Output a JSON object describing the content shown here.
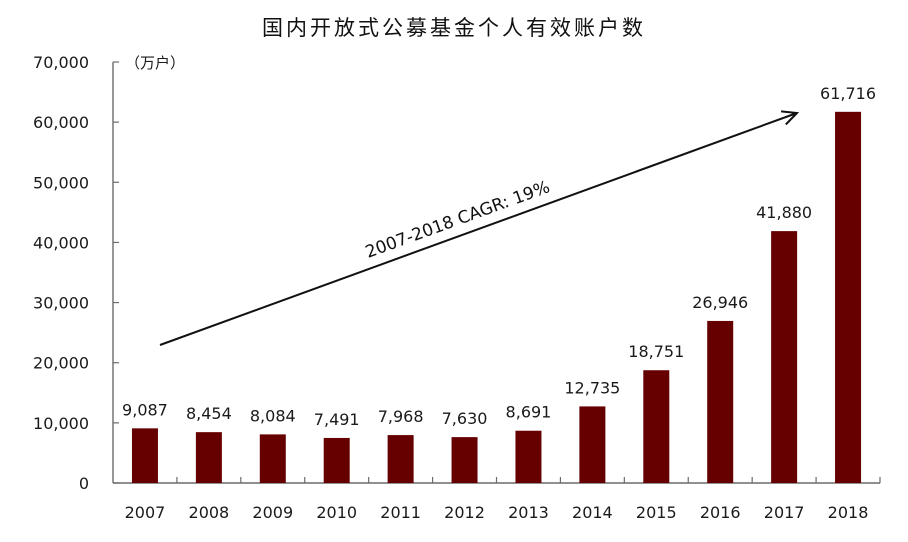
{
  "chart_data": {
    "type": "bar",
    "title": "国内开放式公募基金个人有效账户数",
    "unit_label": "（万户）",
    "xlabel": "",
    "ylabel": "万户",
    "ylim": [
      0,
      70000
    ],
    "yticks": [
      0,
      10000,
      20000,
      30000,
      40000,
      50000,
      60000,
      70000
    ],
    "ytick_labels": [
      "0",
      "10,000",
      "20,000",
      "30,000",
      "40,000",
      "50,000",
      "60,000",
      "70,000"
    ],
    "categories": [
      "2007",
      "2008",
      "2009",
      "2010",
      "2011",
      "2012",
      "2013",
      "2014",
      "2015",
      "2016",
      "2017",
      "2018"
    ],
    "values": [
      9087,
      8454,
      8084,
      7491,
      7968,
      7630,
      8691,
      12735,
      18751,
      26946,
      41880,
      61716
    ],
    "value_labels": [
      "9,087",
      "8,454",
      "8,084",
      "7,491",
      "7,968",
      "7,630",
      "8,691",
      "12,735",
      "18,751",
      "26,946",
      "41,880",
      "61,716"
    ],
    "bar_color": "#660000",
    "grid": false,
    "legend": "none",
    "annotation": {
      "text": "2007-2018 CAGR:   19%",
      "type": "arrow",
      "from": [
        2007,
        23000
      ],
      "to": [
        2017.9,
        62000
      ]
    }
  }
}
